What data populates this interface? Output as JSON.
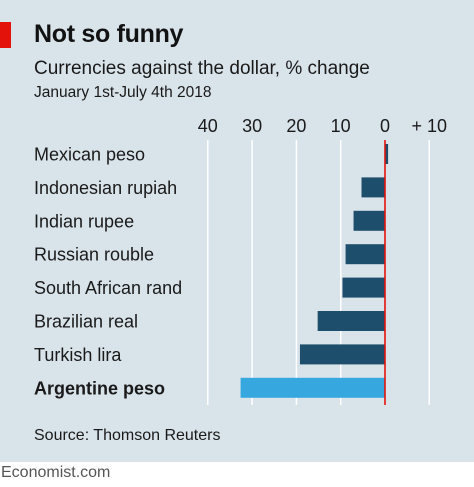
{
  "header": {
    "title": "Not so funny",
    "subtitle": "Currencies against the dollar, % change",
    "date_range": "January 1st-July 4th 2018"
  },
  "footer": {
    "source": "Source: Thomson Reuters",
    "logo_text": "Economist.com"
  },
  "colors": {
    "bar_default": "#1d4e6b",
    "bar_highlight": "#36a8df",
    "zero_line": "#e3120b",
    "grid": "#ffffff",
    "background": "#d9e3ea"
  },
  "chart_data": {
    "type": "bar",
    "orientation": "horizontal",
    "title": "Not so funny",
    "subtitle": "Currencies against the dollar, % change",
    "categories": [
      "Mexican peso",
      "Indonesian rupiah",
      "Indian rupee",
      "Russian rouble",
      "South African rand",
      "Brazilian real",
      "Turkish lira",
      "Argentine peso"
    ],
    "values": [
      0.7,
      -5.3,
      -7.1,
      -8.9,
      -9.6,
      -15.2,
      -19.2,
      -32.6
    ],
    "highlight": "Argentine peso",
    "xlim": [
      -40,
      10
    ],
    "ticks": [
      -40,
      -30,
      -20,
      -10,
      0,
      10
    ],
    "tick_labels": [
      "40",
      "30",
      "20",
      "10",
      "0",
      "+ 10"
    ],
    "grid": true
  }
}
